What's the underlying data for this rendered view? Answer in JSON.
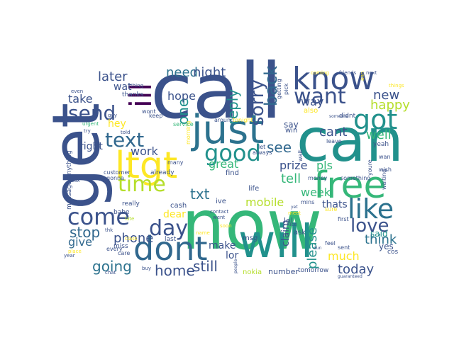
{
  "words": [
    {
      "text": "call",
      "color": "#3b528b"
    },
    {
      "text": "can",
      "color": "#21918c"
    },
    {
      "text": "now",
      "color": "#35b779"
    },
    {
      "text": "get",
      "color": "#3b528b"
    },
    {
      "text": "will",
      "color": "#21918c"
    },
    {
      "text": "just",
      "color": "#2c728e"
    },
    {
      "text": "ltgt",
      "color": "#fde725"
    },
    {
      "text": "free",
      "color": "#35b779"
    },
    {
      "text": "dont",
      "color": "#31688e"
    },
    {
      "text": "ill",
      "color": "#440154"
    },
    {
      "text": "know",
      "color": "#3b528b"
    },
    {
      "text": "got",
      "color": "#21918c"
    },
    {
      "text": "like",
      "color": "#2c728e"
    },
    {
      "text": "good",
      "color": "#21918c"
    },
    {
      "text": "come",
      "color": "#3b528b"
    },
    {
      "text": "time",
      "color": "#b5de2b"
    },
    {
      "text": "day",
      "color": "#3b528b"
    },
    {
      "text": "want",
      "color": "#3b528b"
    },
    {
      "text": "send",
      "color": "#3b528b"
    },
    {
      "text": "text",
      "color": "#31688e"
    },
    {
      "text": "love",
      "color": "#3b528b"
    },
    {
      "text": "sorry",
      "color": "#3b528b"
    },
    {
      "text": "back",
      "color": "#31688e"
    },
    {
      "text": "going",
      "color": "#2c728e"
    },
    {
      "text": "home",
      "color": "#3b528b"
    },
    {
      "text": "still",
      "color": "#3b528b"
    },
    {
      "text": "stop",
      "color": "#31688e"
    },
    {
      "text": "txt",
      "color": "#2c728e"
    },
    {
      "text": "one",
      "color": "#21918c"
    },
    {
      "text": "reply",
      "color": "#21918c"
    },
    {
      "text": "see",
      "color": "#31688e"
    },
    {
      "text": "need",
      "color": "#2c728e"
    },
    {
      "text": "night",
      "color": "#3b528b"
    },
    {
      "text": "later",
      "color": "#3b528b"
    },
    {
      "text": "tell",
      "color": "#35b779"
    },
    {
      "text": "today",
      "color": "#3b528b"
    },
    {
      "text": "new",
      "color": "#3b528b"
    },
    {
      "text": "happy",
      "color": "#b5de2b"
    },
    {
      "text": "well",
      "color": "#35b779"
    },
    {
      "text": "cant",
      "color": "#3b528b"
    },
    {
      "text": "think",
      "color": "#2c728e"
    },
    {
      "text": "phone",
      "color": "#3b528b"
    },
    {
      "text": "mobile",
      "color": "#b5de2b"
    },
    {
      "text": "great",
      "color": "#35b779"
    },
    {
      "text": "please",
      "color": "#21918c"
    },
    {
      "text": "claim",
      "color": "#3b528b"
    },
    {
      "text": "much",
      "color": "#fde725"
    },
    {
      "text": "way",
      "color": "#3b528b"
    },
    {
      "text": "take",
      "color": "#3b528b"
    },
    {
      "text": "hope",
      "color": "#3b528b"
    },
    {
      "text": "work",
      "color": "#3b528b"
    },
    {
      "text": "give",
      "color": "#31688e"
    },
    {
      "text": "week",
      "color": "#35b779"
    },
    {
      "text": "prize",
      "color": "#3b528b"
    },
    {
      "text": "pls",
      "color": "#35b779"
    },
    {
      "text": "thats",
      "color": "#3b528b"
    },
    {
      "text": "dear",
      "color": "#fde725"
    },
    {
      "text": "make",
      "color": "#3b528b"
    },
    {
      "text": "lor",
      "color": "#3b528b"
    },
    {
      "text": "hey",
      "color": "#fde725"
    },
    {
      "text": "wat",
      "color": "#3b528b"
    },
    {
      "text": "right",
      "color": "#3b528b"
    },
    {
      "text": "say",
      "color": "#3b528b"
    },
    {
      "text": "said",
      "color": "#21918c"
    },
    {
      "text": "yes",
      "color": "#3b528b"
    },
    {
      "text": "msg",
      "color": "#3b528b"
    },
    {
      "text": "number",
      "color": "#3b528b"
    },
    {
      "text": "tomorrow",
      "color": "#3b528b"
    },
    {
      "text": "lol",
      "color": "#3b528b"
    },
    {
      "text": "life",
      "color": "#3b528b"
    },
    {
      "text": "find",
      "color": "#3b528b"
    },
    {
      "text": "cash",
      "color": "#3b528b"
    },
    {
      "text": "ive",
      "color": "#3b528b"
    },
    {
      "text": "last",
      "color": "#3b528b"
    },
    {
      "text": "also",
      "color": "#fde725"
    },
    {
      "text": "win",
      "color": "#3b528b"
    },
    {
      "text": "nokia",
      "color": "#b5de2b"
    },
    {
      "text": "ask",
      "color": "#3b528b"
    },
    {
      "text": "really",
      "color": "#3b528b"
    },
    {
      "text": "already",
      "color": "#3b528b"
    },
    {
      "text": "miss",
      "color": "#3b528b"
    },
    {
      "text": "babe",
      "color": "#3b528b"
    },
    {
      "text": "message",
      "color": "#3b528b"
    },
    {
      "text": "anything",
      "color": "#3b528b"
    },
    {
      "text": "thanks",
      "color": "#3b528b"
    },
    {
      "text": "yeah",
      "color": "#3b528b"
    },
    {
      "text": "didnt",
      "color": "#3b528b"
    },
    {
      "text": "cos",
      "color": "#3b528b"
    },
    {
      "text": "first",
      "color": "#3b528b"
    },
    {
      "text": "sent",
      "color": "#3b528b"
    },
    {
      "text": "care",
      "color": "#3b528b"
    },
    {
      "text": "every",
      "color": "#3b528b"
    },
    {
      "text": "many",
      "color": "#3b528b"
    },
    {
      "text": "customer",
      "color": "#3b528b"
    },
    {
      "text": "gonna",
      "color": "#3b528b"
    },
    {
      "text": "let",
      "color": "#3b528b"
    },
    {
      "text": "always",
      "color": "#3b528b"
    },
    {
      "text": "morning",
      "color": "#fde725"
    },
    {
      "text": "around",
      "color": "#3b528b"
    },
    {
      "text": "tonight",
      "color": "#fde725"
    },
    {
      "text": "service",
      "color": "#35b779"
    },
    {
      "text": "keep",
      "color": "#3b528b"
    },
    {
      "text": "wont",
      "color": "#3b528b"
    },
    {
      "text": "pick",
      "color": "#3b528b"
    },
    {
      "text": "getting",
      "color": "#3b528b"
    },
    {
      "text": "leave",
      "color": "#3b528b"
    },
    {
      "text": "feel",
      "color": "#3b528b"
    },
    {
      "text": "something",
      "color": "#3b528b"
    },
    {
      "text": "money",
      "color": "#3b528b"
    },
    {
      "text": "mins",
      "color": "#3b528b"
    },
    {
      "text": "wait",
      "color": "#3b528b"
    },
    {
      "text": "wish",
      "color": "#3b528b"
    },
    {
      "text": "wan",
      "color": "#3b528b"
    },
    {
      "text": "waiting",
      "color": "#3b528b"
    },
    {
      "text": "youre",
      "color": "#3b528b"
    },
    {
      "text": "sure",
      "color": "#fde725"
    },
    {
      "text": "coming",
      "color": "#fde725"
    },
    {
      "text": "friends",
      "color": "#3b528b"
    },
    {
      "text": "next",
      "color": "#3b528b"
    },
    {
      "text": "ann",
      "color": "#fde725"
    },
    {
      "text": "things",
      "color": "#fde725"
    },
    {
      "text": "thing",
      "color": "#3b528b"
    },
    {
      "text": "even",
      "color": "#3b528b"
    },
    {
      "text": "urgent",
      "color": "#35b779"
    },
    {
      "text": "try",
      "color": "#3b528b"
    },
    {
      "text": "told",
      "color": "#3b528b"
    },
    {
      "text": "guy",
      "color": "#3b528b"
    },
    {
      "text": "box",
      "color": "#3b528b"
    },
    {
      "text": "late",
      "color": "#b5de2b"
    },
    {
      "text": "thk",
      "color": "#3b528b"
    },
    {
      "text": "class",
      "color": "#fde725"
    },
    {
      "text": "place",
      "color": "#fde725"
    },
    {
      "text": "year",
      "color": "#3b528b"
    },
    {
      "text": "buy",
      "color": "#3b528b"
    },
    {
      "text": "chat",
      "color": "#3b528b"
    },
    {
      "text": "contact",
      "color": "#3b528b"
    },
    {
      "text": "went",
      "color": "#3b528b"
    },
    {
      "text": "name",
      "color": "#fde725"
    },
    {
      "text": "soon",
      "color": "#fde725"
    },
    {
      "text": "meet",
      "color": "#fde725"
    },
    {
      "text": "nice",
      "color": "#3b528b"
    },
    {
      "text": "people",
      "color": "#3b528b"
    },
    {
      "text": "dun",
      "color": "#3b528b"
    },
    {
      "text": "guaranteed",
      "color": "#3b528b"
    },
    {
      "text": "someone",
      "color": "#3b528b"
    },
    {
      "text": "yet",
      "color": "#3b528b"
    }
  ]
}
